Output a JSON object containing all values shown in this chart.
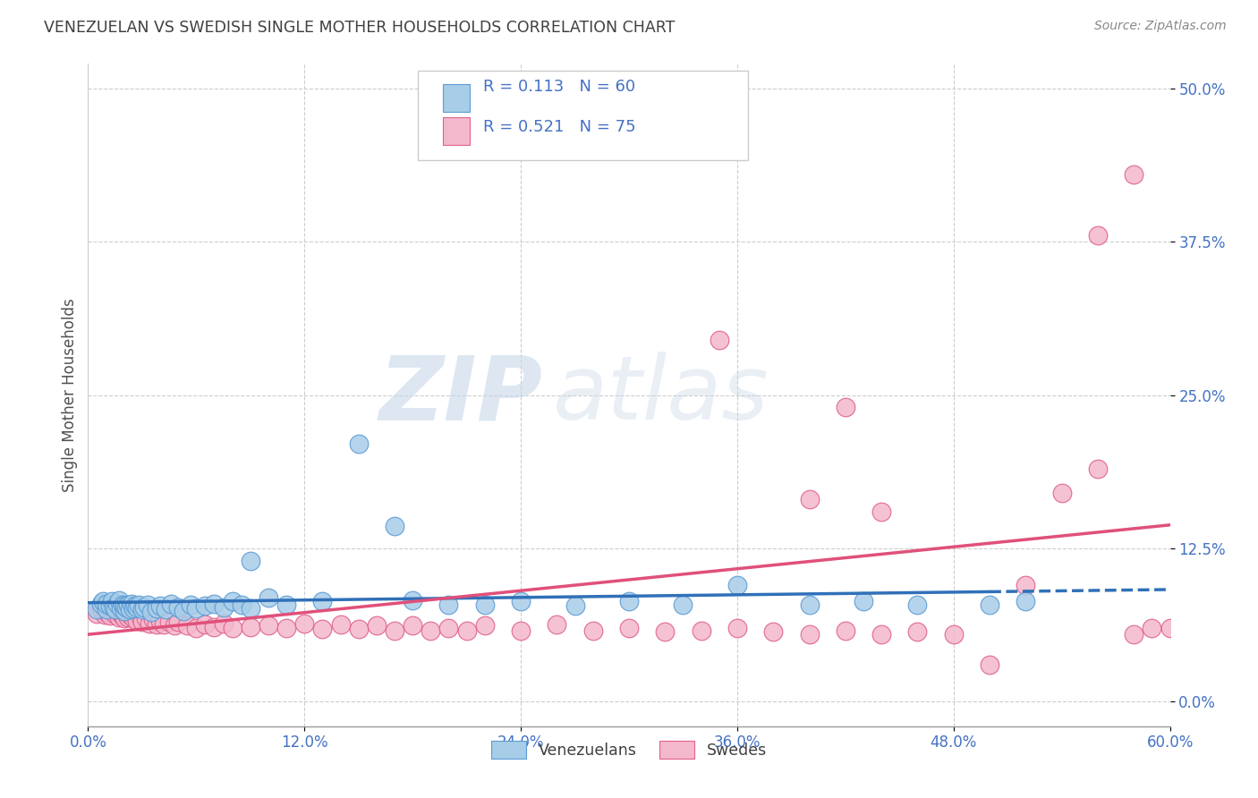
{
  "title": "VENEZUELAN VS SWEDISH SINGLE MOTHER HOUSEHOLDS CORRELATION CHART",
  "source": "Source: ZipAtlas.com",
  "ylabel": "Single Mother Households",
  "xlim": [
    0.0,
    0.6
  ],
  "ylim": [
    -0.02,
    0.52
  ],
  "R_blue": 0.113,
  "N_blue": 60,
  "R_pink": 0.521,
  "N_pink": 75,
  "blue_color": "#a8cde8",
  "pink_color": "#f4b8cc",
  "blue_edge_color": "#5b9bd5",
  "pink_edge_color": "#e06090",
  "blue_line_color": "#3070b8",
  "pink_line_color": "#e0507a",
  "legend_label_blue": "Venezuelans",
  "legend_label_pink": "Swedes",
  "watermark_zip": "ZIP",
  "watermark_atlas": "atlas",
  "background_color": "#ffffff",
  "grid_color": "#c8c8c8",
  "title_color": "#404040",
  "axis_tick_color": "#4472c4",
  "ylabel_color": "#505050",
  "xtick_vals": [
    0.0,
    0.12,
    0.24,
    0.36,
    0.48,
    0.6
  ],
  "xtick_labels": [
    "0.0%",
    "12.0%",
    "24.0%",
    "36.0%",
    "48.0%",
    "60.0%"
  ],
  "ytick_vals": [
    0.0,
    0.125,
    0.25,
    0.375,
    0.5
  ],
  "ytick_labels": [
    "0.0%",
    "12.5%",
    "25.0%",
    "37.5%",
    "50.0%"
  ],
  "blue_scatter_x": [
    0.005,
    0.007,
    0.008,
    0.01,
    0.01,
    0.012,
    0.013,
    0.014,
    0.015,
    0.016,
    0.017,
    0.018,
    0.019,
    0.02,
    0.02,
    0.021,
    0.022,
    0.023,
    0.024,
    0.025,
    0.026,
    0.027,
    0.028,
    0.03,
    0.031,
    0.033,
    0.035,
    0.038,
    0.04,
    0.043,
    0.046,
    0.05,
    0.053,
    0.057,
    0.06,
    0.065,
    0.07,
    0.075,
    0.08,
    0.085,
    0.09,
    0.1,
    0.11,
    0.13,
    0.15,
    0.17,
    0.2,
    0.24,
    0.27,
    0.3,
    0.33,
    0.36,
    0.4,
    0.43,
    0.46,
    0.5,
    0.52,
    0.18,
    0.22,
    0.09
  ],
  "blue_scatter_y": [
    0.075,
    0.08,
    0.082,
    0.075,
    0.08,
    0.078,
    0.082,
    0.077,
    0.075,
    0.08,
    0.083,
    0.076,
    0.079,
    0.074,
    0.078,
    0.077,
    0.079,
    0.075,
    0.08,
    0.076,
    0.078,
    0.077,
    0.079,
    0.075,
    0.077,
    0.079,
    0.073,
    0.076,
    0.078,
    0.075,
    0.08,
    0.077,
    0.074,
    0.079,
    0.076,
    0.078,
    0.08,
    0.077,
    0.082,
    0.079,
    0.076,
    0.085,
    0.079,
    0.082,
    0.21,
    0.143,
    0.079,
    0.082,
    0.078,
    0.082,
    0.079,
    0.095,
    0.079,
    0.082,
    0.079,
    0.079,
    0.082,
    0.083,
    0.079,
    0.115
  ],
  "pink_scatter_x": [
    0.005,
    0.007,
    0.009,
    0.01,
    0.012,
    0.013,
    0.015,
    0.016,
    0.017,
    0.018,
    0.019,
    0.02,
    0.021,
    0.022,
    0.023,
    0.025,
    0.026,
    0.027,
    0.029,
    0.03,
    0.032,
    0.034,
    0.036,
    0.038,
    0.04,
    0.042,
    0.045,
    0.048,
    0.05,
    0.055,
    0.06,
    0.065,
    0.07,
    0.075,
    0.08,
    0.09,
    0.1,
    0.11,
    0.12,
    0.13,
    0.14,
    0.15,
    0.16,
    0.17,
    0.18,
    0.19,
    0.2,
    0.21,
    0.22,
    0.24,
    0.26,
    0.28,
    0.3,
    0.32,
    0.34,
    0.36,
    0.38,
    0.4,
    0.42,
    0.44,
    0.46,
    0.48,
    0.5,
    0.52,
    0.54,
    0.56,
    0.58,
    0.6,
    0.35,
    0.4,
    0.42,
    0.44,
    0.56,
    0.58,
    0.59
  ],
  "pink_scatter_y": [
    0.072,
    0.075,
    0.071,
    0.073,
    0.07,
    0.074,
    0.071,
    0.073,
    0.069,
    0.072,
    0.07,
    0.068,
    0.072,
    0.069,
    0.071,
    0.068,
    0.07,
    0.066,
    0.069,
    0.065,
    0.068,
    0.064,
    0.067,
    0.063,
    0.066,
    0.063,
    0.065,
    0.062,
    0.065,
    0.062,
    0.06,
    0.063,
    0.061,
    0.064,
    0.06,
    0.061,
    0.062,
    0.06,
    0.064,
    0.059,
    0.063,
    0.059,
    0.062,
    0.058,
    0.062,
    0.058,
    0.06,
    0.058,
    0.062,
    0.058,
    0.063,
    0.058,
    0.06,
    0.057,
    0.058,
    0.06,
    0.057,
    0.055,
    0.058,
    0.055,
    0.057,
    0.055,
    0.03,
    0.095,
    0.17,
    0.19,
    0.055,
    0.06,
    0.295,
    0.165,
    0.24,
    0.155,
    0.38,
    0.43,
    0.06
  ]
}
